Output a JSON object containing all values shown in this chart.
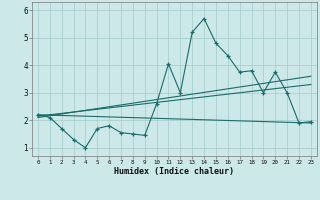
{
  "xlabel": "Humidex (Indice chaleur)",
  "bg_color": "#cce8e8",
  "line_color": "#1a6b6b",
  "grid_color": "#aacece",
  "xlim": [
    -0.5,
    23.5
  ],
  "ylim": [
    0.7,
    6.3
  ],
  "yticks": [
    1,
    2,
    3,
    4,
    5,
    6
  ],
  "xticks": [
    0,
    1,
    2,
    3,
    4,
    5,
    6,
    7,
    8,
    9,
    10,
    11,
    12,
    13,
    14,
    15,
    16,
    17,
    18,
    19,
    20,
    21,
    22,
    23
  ],
  "series1_x": [
    0,
    1,
    2,
    3,
    4,
    5,
    6,
    7,
    8,
    9,
    10,
    11,
    12,
    13,
    14,
    15,
    16,
    17,
    18,
    19,
    20,
    21,
    22,
    23
  ],
  "series1_y": [
    2.2,
    2.1,
    1.7,
    1.3,
    1.0,
    1.7,
    1.8,
    1.55,
    1.5,
    1.45,
    2.6,
    4.05,
    3.0,
    5.2,
    5.7,
    4.8,
    4.35,
    3.75,
    3.8,
    3.0,
    3.75,
    3.0,
    1.9,
    1.95
  ],
  "trend1_x": [
    0,
    23
  ],
  "trend1_y": [
    2.2,
    1.9
  ],
  "trend2_x": [
    0,
    23
  ],
  "trend2_y": [
    2.15,
    3.3
  ],
  "trend3_x": [
    0,
    23
  ],
  "trend3_y": [
    2.1,
    3.6
  ]
}
